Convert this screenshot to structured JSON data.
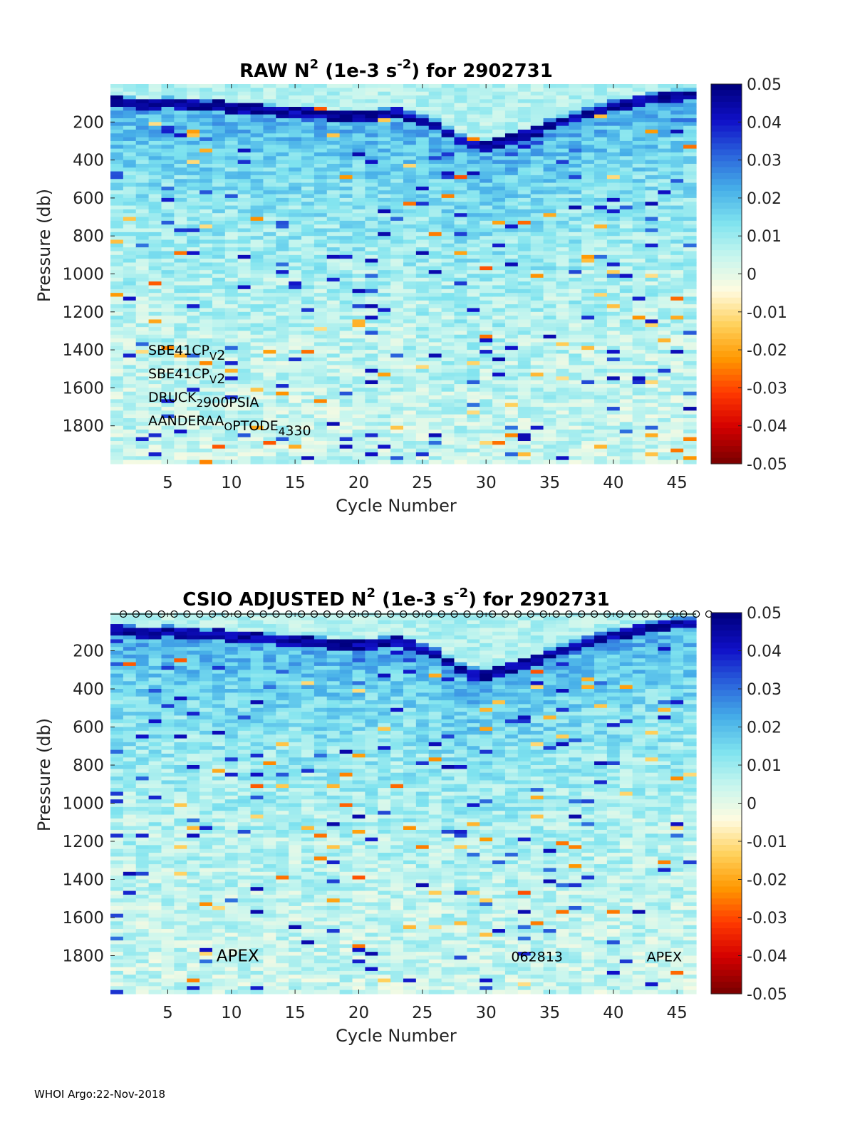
{
  "footer": "WHOI Argo:22-Nov-2018",
  "colors": {
    "background": "#ffffff",
    "axis": "#222222",
    "colormap": [
      "#7f0000",
      "#d40000",
      "#ff3a00",
      "#ff9800",
      "#ffd15c",
      "#fffbe0",
      "#c8f6ee",
      "#7fe3ef",
      "#46aee8",
      "#2a64dc",
      "#1010c8",
      "#000080"
    ]
  },
  "chart_data": [
    {
      "type": "heatmap",
      "title_main": "RAW N",
      "title_sup": "2",
      "title_mid": " (1e-3 s",
      "title_sup2": "-2",
      "title_end": ") for 2902731",
      "xlabel": "Cycle Number",
      "ylabel": "Pressure (db)",
      "xlim": [
        0.5,
        46.5
      ],
      "ylim": [
        0,
        2000
      ],
      "xticks": [
        5,
        10,
        15,
        20,
        25,
        30,
        35,
        40,
        45
      ],
      "yticks": [
        200,
        400,
        600,
        800,
        1000,
        1200,
        1400,
        1600,
        1800
      ],
      "colorbar": {
        "min": -0.05,
        "max": 0.05,
        "ticks": [
          "0.05",
          "0.04",
          "0.03",
          "0.02",
          "0.01",
          "0",
          "-0.01",
          "-0.02",
          "-0.03",
          "-0.04",
          "-0.05"
        ]
      },
      "strong_layer_depth_db": [
        95,
        100,
        105,
        110,
        100,
        105,
        110,
        120,
        115,
        125,
        130,
        135,
        140,
        145,
        150,
        155,
        160,
        165,
        170,
        175,
        165,
        160,
        155,
        180,
        200,
        220,
        260,
        300,
        320,
        330,
        310,
        290,
        270,
        250,
        220,
        200,
        180,
        160,
        140,
        120,
        110,
        90,
        80,
        70,
        60,
        60
      ],
      "annotations_lines": [
        {
          "parts": [
            [
              "SBE41CP",
              ""
            ],
            [
              "V",
              "sub"
            ],
            [
              "2",
              ""
            ]
          ]
        },
        {
          "parts": [
            [
              "SBE41CP",
              ""
            ],
            [
              "V",
              "sub"
            ],
            [
              "2",
              ""
            ]
          ]
        },
        {
          "parts": [
            [
              "DRUCK",
              ""
            ],
            [
              "2",
              "sub"
            ],
            [
              "900PSIA",
              ""
            ]
          ]
        },
        {
          "parts": [
            [
              "AANDERAA",
              ""
            ],
            [
              "O",
              "sub"
            ],
            [
              "PTODE",
              ""
            ],
            [
              "4",
              "sub"
            ],
            [
              "330",
              ""
            ]
          ]
        }
      ],
      "circles_marker": false
    },
    {
      "type": "heatmap",
      "title_main": "CSIO  ADJUSTED N",
      "title_sup": "2",
      "title_mid": " (1e-3 s",
      "title_sup2": "-2",
      "title_end": ") for 2902731",
      "xlabel": "Cycle Number",
      "ylabel": "Pressure (db)",
      "xlim": [
        0.5,
        46.5
      ],
      "ylim": [
        0,
        2000
      ],
      "xticks": [
        5,
        10,
        15,
        20,
        25,
        30,
        35,
        40,
        45
      ],
      "yticks": [
        200,
        400,
        600,
        800,
        1000,
        1200,
        1400,
        1600,
        1800
      ],
      "colorbar": {
        "min": -0.05,
        "max": 0.05,
        "ticks": [
          "0.05",
          "0.04",
          "0.03",
          "0.02",
          "0.01",
          "0",
          "-0.01",
          "-0.02",
          "-0.03",
          "-0.04",
          "-0.05"
        ]
      },
      "strong_layer_depth_db": [
        95,
        100,
        105,
        110,
        100,
        105,
        110,
        120,
        115,
        125,
        130,
        135,
        140,
        145,
        150,
        155,
        160,
        165,
        170,
        175,
        165,
        160,
        155,
        180,
        200,
        220,
        260,
        300,
        320,
        330,
        310,
        290,
        270,
        250,
        220,
        200,
        180,
        160,
        140,
        120,
        110,
        90,
        80,
        70,
        60,
        60
      ],
      "bottom_labels": [
        {
          "text": "APEX",
          "x": 10.5,
          "y": 1800,
          "size": "large"
        },
        {
          "text": "062813",
          "x": 34,
          "y": 1800,
          "size": "small"
        },
        {
          "text": "APEX",
          "x": 44,
          "y": 1800,
          "size": "small"
        }
      ],
      "circles_marker": true
    }
  ]
}
